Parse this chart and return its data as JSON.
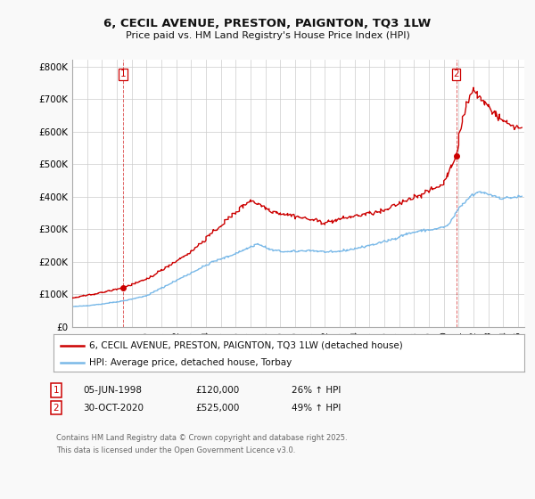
{
  "title": "6, CECIL AVENUE, PRESTON, PAIGNTON, TQ3 1LW",
  "subtitle": "Price paid vs. HM Land Registry's House Price Index (HPI)",
  "ylim": [
    0,
    820000
  ],
  "yticks": [
    0,
    100000,
    200000,
    300000,
    400000,
    500000,
    600000,
    700000,
    800000
  ],
  "ytick_labels": [
    "£0",
    "£100K",
    "£200K",
    "£300K",
    "£400K",
    "£500K",
    "£600K",
    "£700K",
    "£800K"
  ],
  "hpi_color": "#7ab9e8",
  "price_color": "#cc0000",
  "transaction1_date_yr": 1998.417,
  "transaction1_price": 120000,
  "transaction2_date_yr": 2020.833,
  "transaction2_price": 525000,
  "transaction1_label": "1",
  "transaction2_label": "2",
  "transaction1_date_str": "05-JUN-1998",
  "transaction2_date_str": "30-OCT-2020",
  "transaction1_pct": "26% ↑ HPI",
  "transaction2_pct": "49% ↑ HPI",
  "legend1": "6, CECIL AVENUE, PRESTON, PAIGNTON, TQ3 1LW (detached house)",
  "legend2": "HPI: Average price, detached house, Torbay",
  "footnote1": "Contains HM Land Registry data © Crown copyright and database right 2025.",
  "footnote2": "This data is licensed under the Open Government Licence v3.0.",
  "background_color": "#f9f9f9",
  "plot_background": "#ffffff",
  "gridcolor": "#cccccc",
  "hpi_anchors_yr": [
    1995.0,
    1996.0,
    1997.0,
    1998.5,
    2000.0,
    2001.5,
    2003.0,
    2004.5,
    2005.5,
    2007.5,
    2008.5,
    2009.5,
    2011.0,
    2012.5,
    2014.0,
    2015.5,
    2016.5,
    2017.5,
    2018.5,
    2019.5,
    2020.3,
    2021.0,
    2021.8,
    2022.5,
    2023.2,
    2024.0,
    2025.2
  ],
  "hpi_anchors_val": [
    62000,
    65000,
    70000,
    80000,
    95000,
    130000,
    165000,
    200000,
    215000,
    255000,
    235000,
    230000,
    235000,
    228000,
    240000,
    255000,
    268000,
    285000,
    295000,
    300000,
    310000,
    360000,
    400000,
    415000,
    405000,
    395000,
    400000
  ],
  "price_anchors_yr": [
    1995.0,
    1997.0,
    1998.417,
    2000.0,
    2003.0,
    2005.0,
    2007.0,
    2008.5,
    2010.0,
    2012.0,
    2014.0,
    2016.0,
    2017.5,
    2019.0,
    2020.0,
    2020.833,
    2021.5,
    2022.0,
    2022.5,
    2023.0,
    2023.8,
    2024.5,
    2025.2
  ],
  "price_anchors_val": [
    88000,
    105000,
    120000,
    145000,
    230000,
    310000,
    390000,
    355000,
    340000,
    320000,
    340000,
    355000,
    390000,
    415000,
    440000,
    525000,
    680000,
    730000,
    700000,
    680000,
    640000,
    620000,
    610000
  ]
}
